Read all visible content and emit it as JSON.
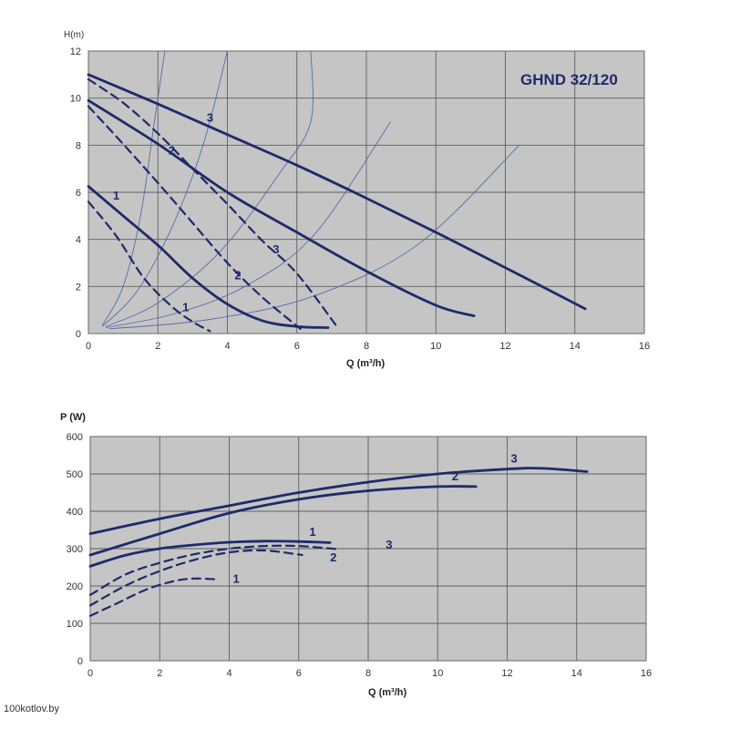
{
  "watermark": "100kotlov.by",
  "chart_data": [
    {
      "type": "line",
      "title": "GHND 32/120",
      "ylabel": "H(m)",
      "xlabel": "Q (m³/h)",
      "xlim": [
        0,
        16
      ],
      "ylim": [
        0,
        12
      ],
      "xticks": [
        0,
        2,
        4,
        6,
        8,
        10,
        12,
        14,
        16
      ],
      "yticks": [
        0,
        2,
        4,
        6,
        8,
        10,
        12
      ],
      "grid": true,
      "series": [
        {
          "name": "3",
          "style": "solid",
          "label_at": [
            3.5,
            9.0
          ],
          "points": [
            [
              0,
              11.0
            ],
            [
              2,
              9.75
            ],
            [
              4,
              8.45
            ],
            [
              6,
              7.15
            ],
            [
              8,
              5.75
            ],
            [
              10,
              4.3
            ],
            [
              12,
              2.8
            ],
            [
              14.3,
              1.05
            ]
          ]
        },
        {
          "name": "2",
          "style": "solid",
          "label_at": [
            2.4,
            7.6
          ],
          "points": [
            [
              0,
              9.9
            ],
            [
              2,
              8.05
            ],
            [
              4,
              6.0
            ],
            [
              6,
              4.3
            ],
            [
              8,
              2.65
            ],
            [
              10,
              1.2
            ],
            [
              11.1,
              0.75
            ]
          ]
        },
        {
          "name": "1",
          "style": "solid",
          "label_at": [
            0.8,
            5.7
          ],
          "points": [
            [
              0,
              6.25
            ],
            [
              1,
              5.0
            ],
            [
              2,
              3.75
            ],
            [
              3,
              2.35
            ],
            [
              4,
              1.25
            ],
            [
              5,
              0.55
            ],
            [
              6,
              0.3
            ],
            [
              6.9,
              0.25
            ]
          ]
        },
        {
          "name": "3",
          "style": "dashed",
          "label_at": [
            5.4,
            3.4
          ],
          "points": [
            [
              0,
              10.8
            ],
            [
              1,
              9.8
            ],
            [
              2,
              8.5
            ],
            [
              3,
              7.0
            ],
            [
              4,
              5.5
            ],
            [
              5,
              3.95
            ],
            [
              6,
              2.55
            ],
            [
              7.2,
              0.2
            ]
          ]
        },
        {
          "name": "2",
          "style": "dashed",
          "label_at": [
            4.3,
            2.3
          ],
          "points": [
            [
              0,
              9.65
            ],
            [
              1,
              8.05
            ],
            [
              2,
              6.4
            ],
            [
              3,
              4.7
            ],
            [
              4,
              3.0
            ],
            [
              5,
              1.55
            ],
            [
              6.1,
              0.2
            ]
          ]
        },
        {
          "name": "1",
          "style": "dashed",
          "label_at": [
            2.8,
            0.95
          ],
          "points": [
            [
              0,
              5.6
            ],
            [
              0.8,
              4.15
            ],
            [
              1.6,
              2.35
            ],
            [
              2.4,
              1.15
            ],
            [
              3,
              0.5
            ],
            [
              3.5,
              0.1
            ]
          ]
        }
      ],
      "system_curves": [
        {
          "points": [
            [
              0.4,
              0.35
            ],
            [
              1.0,
              2.0
            ],
            [
              1.5,
              5.0
            ],
            [
              1.9,
              9.0
            ],
            [
              2.2,
              12.0
            ]
          ]
        },
        {
          "points": [
            [
              0.4,
              0.3
            ],
            [
              1.4,
              1.8
            ],
            [
              2.4,
              4.5
            ],
            [
              3.3,
              8.0
            ],
            [
              4.0,
              12.0
            ]
          ]
        },
        {
          "points": [
            [
              0.5,
              0.3
            ],
            [
              2.0,
              1.3
            ],
            [
              3.8,
              3.5
            ],
            [
              5.5,
              6.8
            ],
            [
              6.4,
              9.0
            ],
            [
              6.4,
              12.0
            ]
          ]
        },
        {
          "points": [
            [
              0.5,
              0.25
            ],
            [
              2.5,
              0.85
            ],
            [
              4.5,
              2.0
            ],
            [
              6.5,
              4.2
            ],
            [
              8.7,
              9.0
            ]
          ]
        },
        {
          "points": [
            [
              0.6,
              0.2
            ],
            [
              3.5,
              0.6
            ],
            [
              6.5,
              1.6
            ],
            [
              9.5,
              3.8
            ],
            [
              12.4,
              8.0
            ]
          ]
        }
      ]
    },
    {
      "type": "line",
      "ylabel": "P (W)",
      "xlabel": "Q (m³/h)",
      "xlim": [
        0,
        16
      ],
      "ylim": [
        0,
        600
      ],
      "xticks": [
        0,
        2,
        4,
        6,
        8,
        10,
        12,
        14,
        16
      ],
      "yticks": [
        0,
        100,
        200,
        300,
        400,
        500,
        600
      ],
      "grid": true,
      "series": [
        {
          "name": "3",
          "style": "solid",
          "label_at": [
            12.2,
            530
          ],
          "points": [
            [
              0,
              340
            ],
            [
              2,
              380
            ],
            [
              4,
              415
            ],
            [
              6,
              450
            ],
            [
              8,
              478
            ],
            [
              10,
              500
            ],
            [
              12,
              513
            ],
            [
              13,
              515
            ],
            [
              14.3,
              506
            ]
          ]
        },
        {
          "name": "2",
          "style": "solid",
          "label_at": [
            10.5,
            483
          ],
          "points": [
            [
              0,
              283
            ],
            [
              2,
              340
            ],
            [
              4,
              395
            ],
            [
              6,
              432
            ],
            [
              8,
              455
            ],
            [
              10,
              466
            ],
            [
              11.1,
              466
            ]
          ]
        },
        {
          "name": "1",
          "style": "solid",
          "label_at": [
            6.4,
            334
          ],
          "points": [
            [
              0,
              253
            ],
            [
              1,
              282
            ],
            [
              2,
              300
            ],
            [
              3,
              310
            ],
            [
              4,
              317
            ],
            [
              5,
              320
            ],
            [
              6,
              319
            ],
            [
              6.9,
              316
            ]
          ]
        },
        {
          "name": "3",
          "style": "dashed",
          "label_at": [
            8.6,
            300
          ],
          "points": [
            [
              0,
              176
            ],
            [
              1,
              230
            ],
            [
              2,
              262
            ],
            [
              3,
              285
            ],
            [
              4,
              300
            ],
            [
              5,
              307
            ],
            [
              6,
              307
            ],
            [
              7.2,
              298
            ]
          ]
        },
        {
          "name": "2",
          "style": "dashed",
          "label_at": [
            7.0,
            266
          ],
          "points": [
            [
              0,
              148
            ],
            [
              1,
              200
            ],
            [
              2,
              240
            ],
            [
              3,
              270
            ],
            [
              4,
              290
            ],
            [
              5,
              295
            ],
            [
              6.1,
              283
            ]
          ]
        },
        {
          "name": "1",
          "style": "dashed",
          "label_at": [
            4.2,
            208
          ],
          "points": [
            [
              0,
              120
            ],
            [
              0.8,
              155
            ],
            [
              1.6,
              190
            ],
            [
              2.4,
              213
            ],
            [
              3,
              220
            ],
            [
              3.6,
              218
            ]
          ]
        }
      ]
    }
  ]
}
